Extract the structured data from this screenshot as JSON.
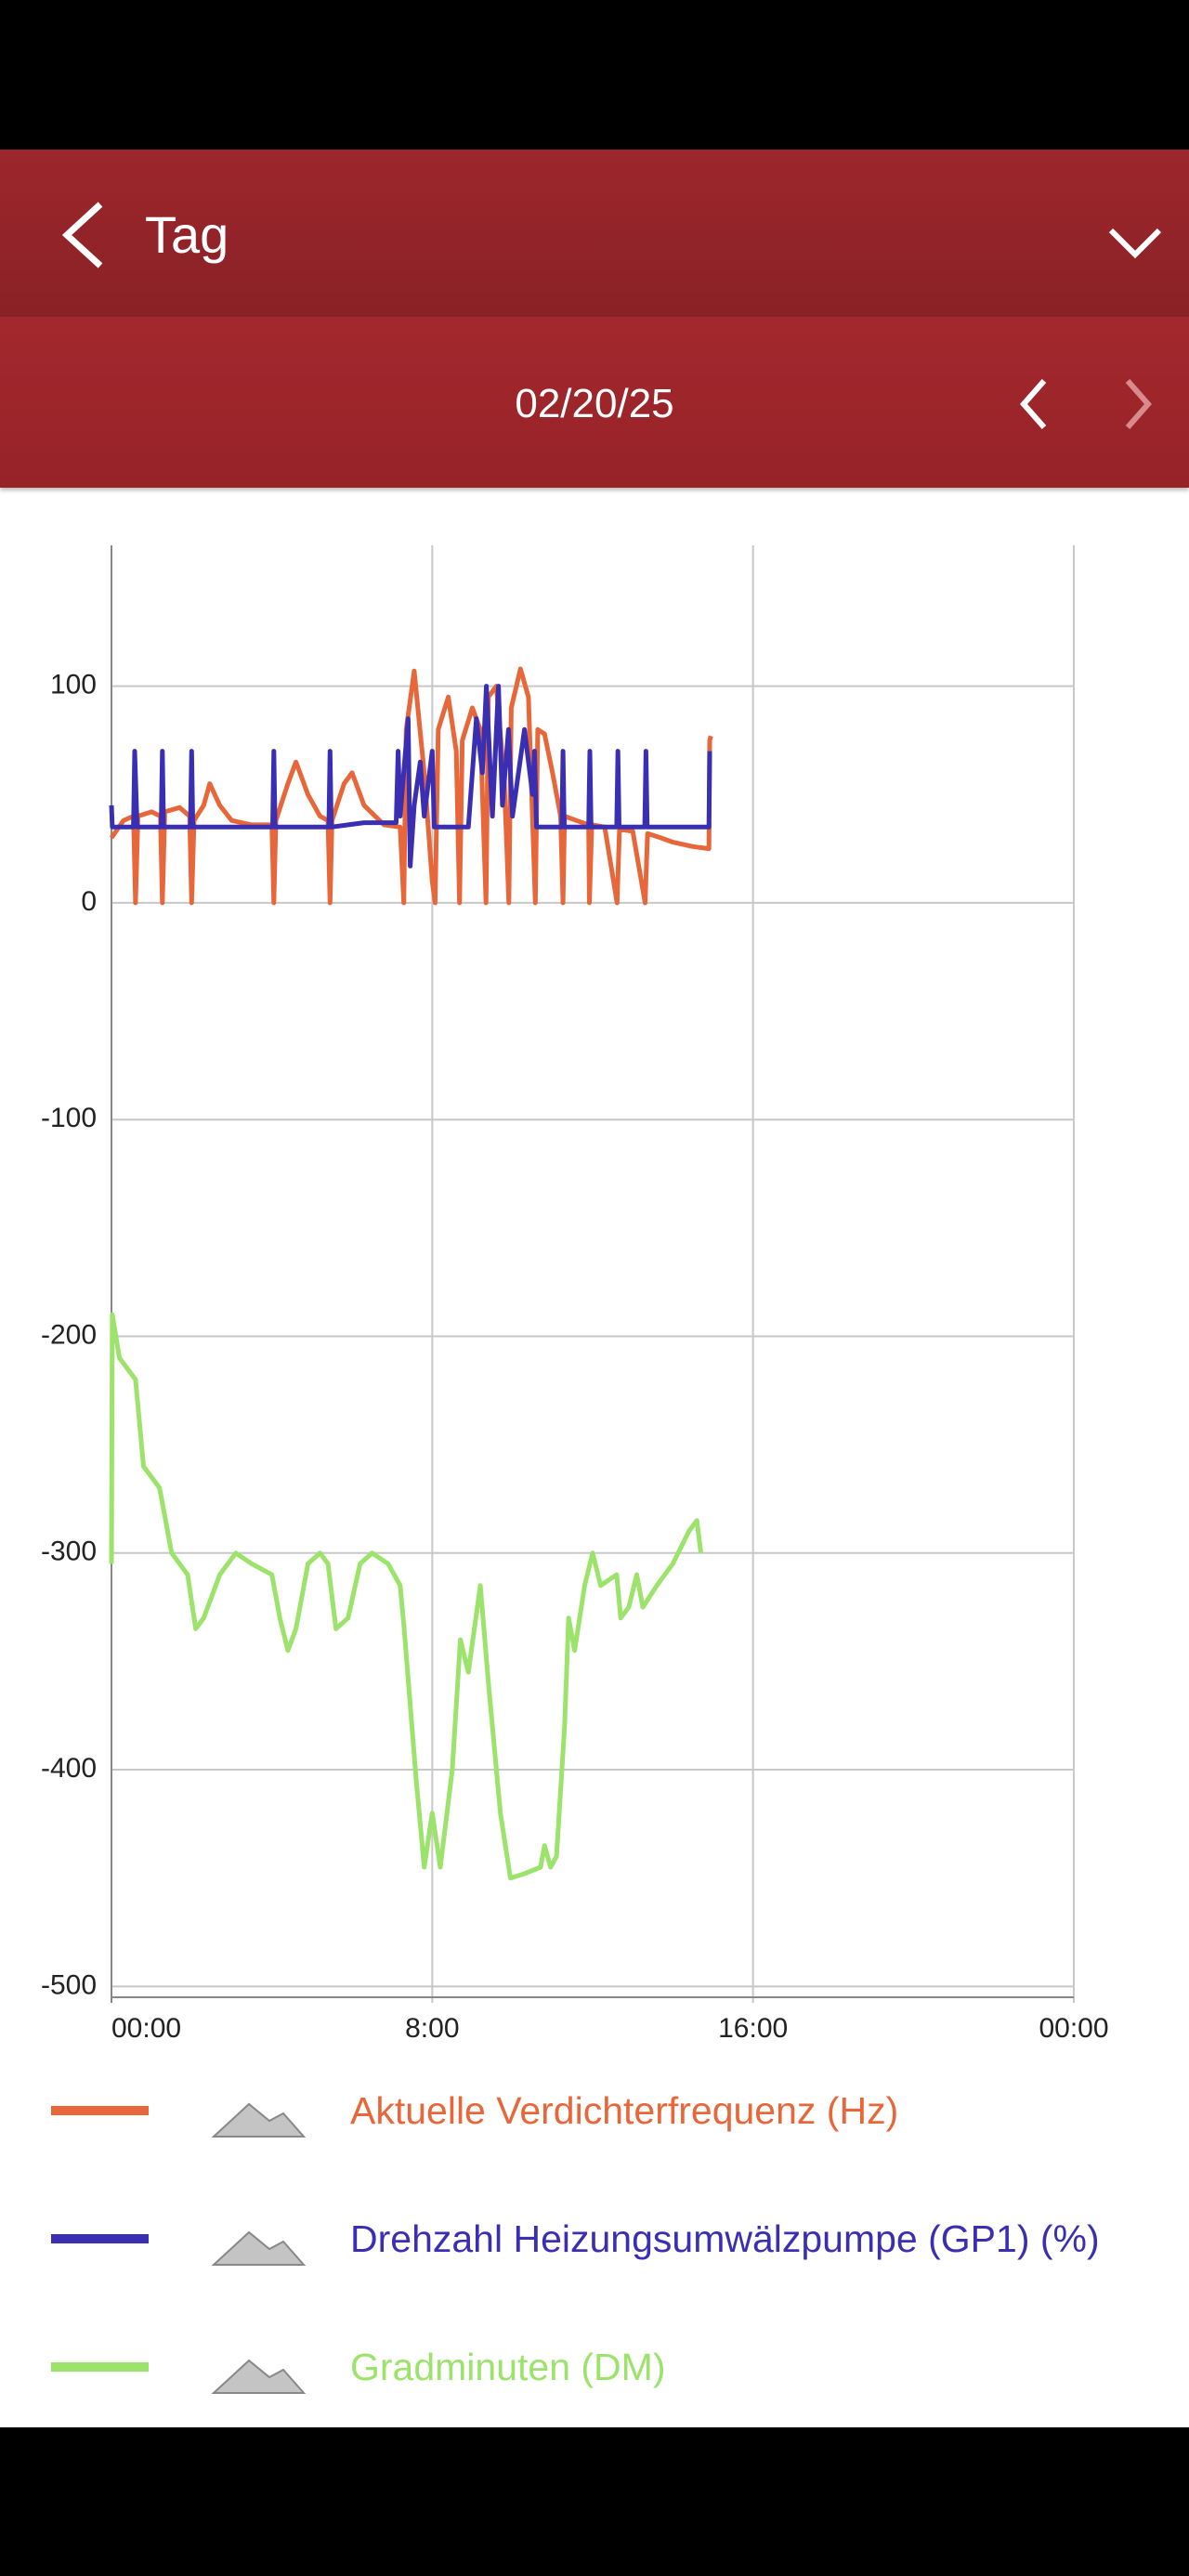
{
  "header": {
    "title": "Tag",
    "date": "02/20/25"
  },
  "chart_data": {
    "type": "line",
    "xlim": [
      0,
      24
    ],
    "xticks": [
      {
        "value": 0,
        "label": "00:00"
      },
      {
        "value": 8,
        "label": "8:00"
      },
      {
        "value": 16,
        "label": "16:00"
      },
      {
        "value": 24,
        "label": "00:00"
      }
    ],
    "ylim": [
      -505,
      165
    ],
    "yticks": [
      100,
      0,
      -100,
      -200,
      -300,
      -400,
      -500
    ],
    "grid": true,
    "series": [
      {
        "name": "Aktuelle Verdichterfrequenz (Hz)",
        "color": "#e8673a",
        "x": [
          0,
          0.3,
          0.55,
          0.6,
          0.66,
          1.0,
          1.22,
          1.27,
          1.33,
          1.7,
          1.95,
          2.0,
          2.06,
          2.3,
          2.45,
          2.7,
          3.0,
          3.5,
          4.0,
          4.05,
          4.1,
          4.4,
          4.6,
          4.9,
          5.2,
          5.4,
          5.45,
          5.5,
          5.8,
          6.0,
          6.3,
          6.8,
          7.2,
          7.29,
          7.35,
          7.55,
          7.8,
          8.0,
          8.07,
          8.15,
          8.4,
          8.6,
          8.68,
          8.75,
          9.0,
          9.2,
          9.34,
          9.4,
          9.6,
          9.8,
          9.91,
          9.97,
          10.2,
          10.4,
          10.57,
          10.63,
          10.8,
          11.0,
          11.2,
          11.26,
          11.3,
          11.6,
          11.9,
          11.92,
          11.98,
          12.3,
          12.61,
          12.67,
          13.0,
          13.31,
          13.37,
          13.7,
          14.0,
          14.5,
          14.9,
          14.92,
          14.95
        ],
        "values": [
          30,
          38,
          40,
          0,
          40,
          42,
          40,
          0,
          42,
          44,
          40,
          0,
          38,
          45,
          55,
          45,
          38,
          36,
          36,
          0,
          38,
          55,
          65,
          50,
          40,
          38,
          0,
          38,
          55,
          60,
          45,
          36,
          35,
          0,
          80,
          107,
          60,
          10,
          0,
          80,
          95,
          70,
          0,
          75,
          90,
          80,
          0,
          95,
          100,
          55,
          0,
          90,
          108,
          95,
          0,
          80,
          78,
          60,
          40,
          0,
          40,
          38,
          36,
          0,
          36,
          35,
          0,
          34,
          33,
          0,
          32,
          30,
          28,
          26,
          25,
          75,
          77
        ]
      },
      {
        "name": "Drehzahl Heizungsumwälzpumpe (GP1) (%)",
        "color": "#3a2fb3",
        "x": [
          0,
          0.02,
          0.55,
          0.58,
          0.64,
          1.24,
          1.27,
          1.3,
          1.97,
          2.0,
          2.03,
          4.02,
          4.05,
          4.08,
          5.42,
          5.45,
          5.48,
          6.3,
          7.1,
          7.15,
          7.2,
          7.4,
          7.45,
          7.55,
          7.7,
          7.8,
          8.0,
          8.05,
          8.9,
          9.1,
          9.25,
          9.35,
          9.5,
          9.65,
          9.75,
          9.9,
          10.0,
          10.3,
          10.5,
          10.55,
          10.6,
          11.23,
          11.26,
          11.29,
          11.9,
          11.93,
          11.96,
          12.6,
          12.63,
          12.66,
          13.3,
          13.33,
          13.36,
          14.9,
          14.92
        ],
        "values": [
          45,
          35,
          35,
          70,
          35,
          35,
          70,
          35,
          35,
          70,
          35,
          35,
          70,
          35,
          35,
          70,
          35,
          37,
          37,
          70,
          40,
          85,
          17,
          45,
          65,
          40,
          70,
          35,
          35,
          85,
          60,
          100,
          40,
          100,
          45,
          80,
          40,
          80,
          50,
          70,
          35,
          35,
          70,
          35,
          35,
          70,
          35,
          35,
          70,
          35,
          35,
          70,
          35,
          35,
          70
        ]
      },
      {
        "name": "Gradminuten (DM)",
        "color": "#9be36b",
        "x": [
          0,
          0.02,
          0.2,
          0.6,
          0.8,
          1.2,
          1.5,
          1.9,
          2.1,
          2.3,
          2.7,
          3.1,
          3.5,
          4.0,
          4.2,
          4.4,
          4.6,
          4.9,
          5.2,
          5.4,
          5.6,
          5.9,
          6.2,
          6.5,
          6.9,
          7.2,
          7.3,
          7.6,
          7.8,
          8.0,
          8.2,
          8.5,
          8.7,
          8.9,
          9.2,
          9.4,
          9.7,
          9.95,
          10.3,
          10.7,
          10.8,
          10.95,
          11.1,
          11.3,
          11.4,
          11.55,
          11.8,
          12.0,
          12.2,
          12.6,
          12.7,
          12.9,
          13.1,
          13.25,
          13.6,
          14.0,
          14.4,
          14.6,
          14.7
        ],
        "values": [
          -305,
          -190,
          -210,
          -220,
          -260,
          -270,
          -300,
          -310,
          -335,
          -330,
          -310,
          -300,
          -305,
          -310,
          -330,
          -345,
          -335,
          -305,
          -300,
          -305,
          -335,
          -330,
          -305,
          -300,
          -305,
          -315,
          -335,
          -405,
          -445,
          -420,
          -445,
          -400,
          -340,
          -355,
          -315,
          -360,
          -420,
          -450,
          -448,
          -445,
          -435,
          -445,
          -440,
          -380,
          -330,
          -345,
          -315,
          -300,
          -315,
          -310,
          -330,
          -325,
          -310,
          -325,
          -315,
          -305,
          -290,
          -285,
          -300
        ]
      }
    ]
  }
}
